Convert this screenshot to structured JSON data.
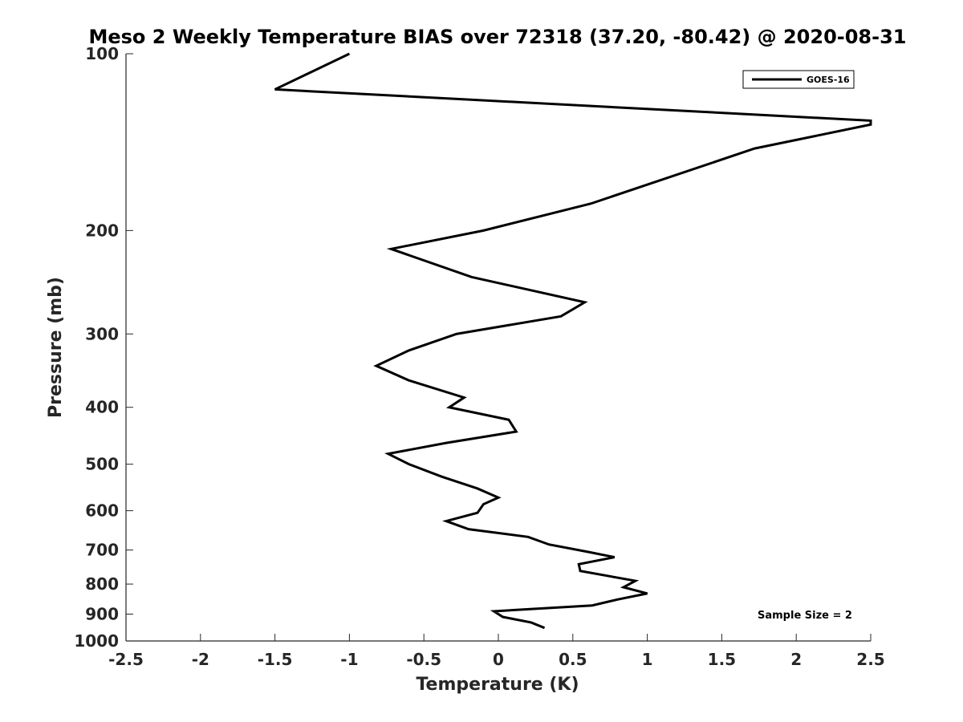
{
  "chart_data": {
    "type": "line",
    "title": "Meso 2 Weekly Temperature BIAS over 72318 (37.20, -80.42) @ 2020-08-31",
    "xlabel": "Temperature (K)",
    "ylabel": "Pressure (mb)",
    "xlim": [
      -2.5,
      2.5
    ],
    "ylim": [
      100,
      1000
    ],
    "y_scale": "log",
    "y_reversed": true,
    "x_ticks": [
      "-2.5",
      "-2",
      "-1.5",
      "-1",
      "-0.5",
      "0",
      "0.5",
      "1",
      "1.5",
      "2",
      "2.5"
    ],
    "y_ticks": [
      "100",
      "200",
      "300",
      "400",
      "500",
      "600",
      "700",
      "800",
      "900",
      "1000"
    ],
    "legend": {
      "position": "top-right"
    },
    "annotation": "Sample Size = 2",
    "colors": {
      "line": "#000000",
      "axis": "#262626"
    },
    "series": [
      {
        "name": "GOES-16",
        "points": [
          {
            "x": -1.0,
            "y": 100
          },
          {
            "x": -1.5,
            "y": 115
          },
          {
            "x": 2.5,
            "y": 130
          },
          {
            "x": 2.5,
            "y": 132
          },
          {
            "x": 1.72,
            "y": 145
          },
          {
            "x": 0.62,
            "y": 180
          },
          {
            "x": -0.1,
            "y": 200
          },
          {
            "x": -0.72,
            "y": 215
          },
          {
            "x": -0.18,
            "y": 240
          },
          {
            "x": 0.58,
            "y": 265
          },
          {
            "x": 0.42,
            "y": 280
          },
          {
            "x": -0.28,
            "y": 300
          },
          {
            "x": -0.6,
            "y": 320
          },
          {
            "x": -0.82,
            "y": 340
          },
          {
            "x": -0.6,
            "y": 360
          },
          {
            "x": -0.23,
            "y": 385
          },
          {
            "x": -0.33,
            "y": 400
          },
          {
            "x": 0.07,
            "y": 420
          },
          {
            "x": 0.12,
            "y": 440
          },
          {
            "x": -0.35,
            "y": 460
          },
          {
            "x": -0.74,
            "y": 480
          },
          {
            "x": -0.6,
            "y": 500
          },
          {
            "x": -0.38,
            "y": 525
          },
          {
            "x": -0.14,
            "y": 550
          },
          {
            "x": 0.0,
            "y": 570
          },
          {
            "x": -0.1,
            "y": 585
          },
          {
            "x": -0.14,
            "y": 605
          },
          {
            "x": -0.35,
            "y": 625
          },
          {
            "x": -0.2,
            "y": 645
          },
          {
            "x": 0.2,
            "y": 665
          },
          {
            "x": 0.34,
            "y": 685
          },
          {
            "x": 0.6,
            "y": 705
          },
          {
            "x": 0.78,
            "y": 720
          },
          {
            "x": 0.54,
            "y": 740
          },
          {
            "x": 0.55,
            "y": 760
          },
          {
            "x": 0.92,
            "y": 790
          },
          {
            "x": 0.84,
            "y": 810
          },
          {
            "x": 1.0,
            "y": 830
          },
          {
            "x": 0.8,
            "y": 850
          },
          {
            "x": 0.63,
            "y": 870
          },
          {
            "x": -0.03,
            "y": 890
          },
          {
            "x": 0.03,
            "y": 910
          },
          {
            "x": 0.22,
            "y": 930
          },
          {
            "x": 0.31,
            "y": 950
          }
        ]
      }
    ]
  }
}
